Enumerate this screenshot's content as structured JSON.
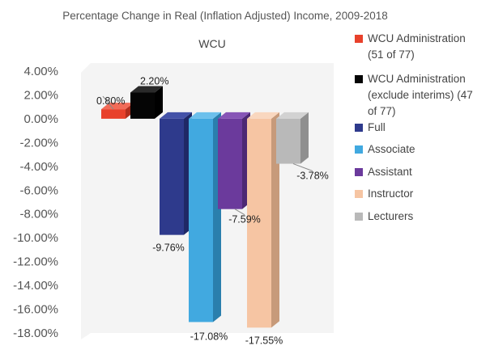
{
  "chart_data": {
    "type": "bar",
    "title": "Percentage Change in Real (Inflation Adjusted) Income, 2009-2018",
    "subtitle": "WCU",
    "xlabel": "",
    "ylabel": "",
    "ylim": [
      -18,
      4
    ],
    "yticks": [
      "4.00%",
      "2.00%",
      "0.00%",
      "-2.00%",
      "-4.00%",
      "-6.00%",
      "-8.00%",
      "-10.00%",
      "-12.00%",
      "-14.00%",
      "-16.00%",
      "-18.00%"
    ],
    "ytick_values": [
      4,
      2,
      0,
      -2,
      -4,
      -6,
      -8,
      -10,
      -12,
      -14,
      -16,
      -18
    ],
    "series": [
      {
        "name": "WCU Administration (51 of 77)",
        "legend_lines": [
          "WCU Administration",
          "(51 of 77)"
        ],
        "value": 0.8,
        "label": "0.80%",
        "color": "#e8412b",
        "side": "#b22d1c",
        "top": "#f26b58"
      },
      {
        "name": "WCU Administration (exclude interims) (47 of 77)",
        "legend_lines": [
          "WCU Administration",
          "(exclude interims) (47",
          "of 77)"
        ],
        "value": 2.2,
        "label": "2.20%",
        "color": "#050505",
        "side": "#000000",
        "top": "#2a2a2a"
      },
      {
        "name": "Full",
        "legend_lines": [
          "Full"
        ],
        "value": -9.76,
        "label": "-9.76%",
        "color": "#2e3a8c",
        "side": "#1f2866",
        "top": "#4452a8"
      },
      {
        "name": "Associate",
        "legend_lines": [
          "Associate"
        ],
        "value": -17.08,
        "label": "-17.08%",
        "color": "#41a9e0",
        "side": "#2a7fad",
        "top": "#6cc0ec"
      },
      {
        "name": "Assistant",
        "legend_lines": [
          "Assistant"
        ],
        "value": -7.59,
        "label": "-7.59%",
        "color": "#6b3a9c",
        "side": "#4d2873",
        "top": "#8755b6"
      },
      {
        "name": "Instructor",
        "legend_lines": [
          "Instructor"
        ],
        "value": -17.55,
        "label": "-17.55%",
        "color": "#f6c5a3",
        "side": "#c79a7a",
        "top": "#f9d7bf"
      },
      {
        "name": "Lecturers",
        "legend_lines": [
          "Lecturers"
        ],
        "value": -3.78,
        "label": "-3.78%",
        "color": "#b9b9b9",
        "side": "#8f8f8f",
        "top": "#d2d2d2"
      }
    ]
  }
}
